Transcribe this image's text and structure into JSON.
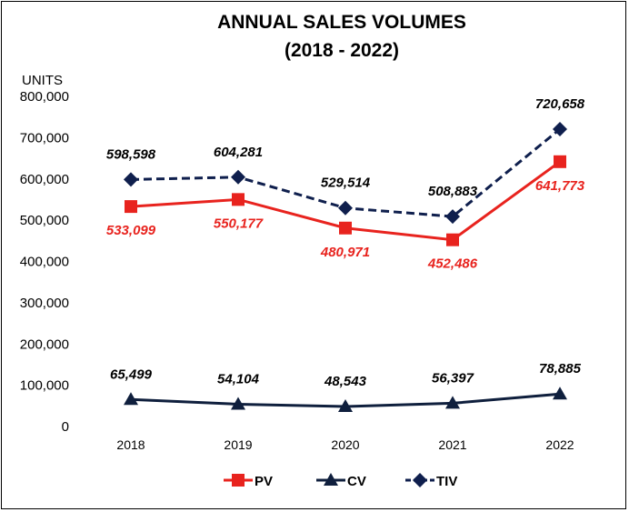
{
  "chart_data": {
    "type": "line",
    "title": "ANNUAL SALES VOLUMES",
    "subtitle": "(2018 - 2022)",
    "ylabel": "UNITS",
    "xlabel": "",
    "categories": [
      "2018",
      "2019",
      "2020",
      "2021",
      "2022"
    ],
    "ylim": [
      0,
      800000
    ],
    "yticks": [
      0,
      100000,
      200000,
      300000,
      400000,
      500000,
      600000,
      700000,
      800000
    ],
    "ytick_labels": [
      "0",
      "100,000",
      "200,000",
      "300,000",
      "400,000",
      "500,000",
      "600,000",
      "700,000",
      "800,000"
    ],
    "grid": false,
    "legend_position": "bottom",
    "series": [
      {
        "name": "PV",
        "values": [
          533099,
          550177,
          480971,
          452486,
          641773
        ],
        "labels": [
          "533,099",
          "550,177",
          "480,971",
          "452,486",
          "641,773"
        ],
        "color": "#e8231e",
        "marker": "square",
        "line_style": "solid",
        "label_position": "below"
      },
      {
        "name": "CV",
        "values": [
          65499,
          54104,
          48543,
          56397,
          78885
        ],
        "labels": [
          "65,499",
          "54,104",
          "48,543",
          "56,397",
          "78,885"
        ],
        "color": "#0f1f3d",
        "marker": "triangle",
        "line_style": "solid",
        "label_position": "above"
      },
      {
        "name": "TIV",
        "values": [
          598598,
          604281,
          529514,
          508883,
          720658
        ],
        "labels": [
          "598,598",
          "604,281",
          "529,514",
          "508,883",
          "720,658"
        ],
        "color": "#0f1f4d",
        "marker": "diamond",
        "line_style": "dashed",
        "label_position": "above"
      }
    ]
  }
}
